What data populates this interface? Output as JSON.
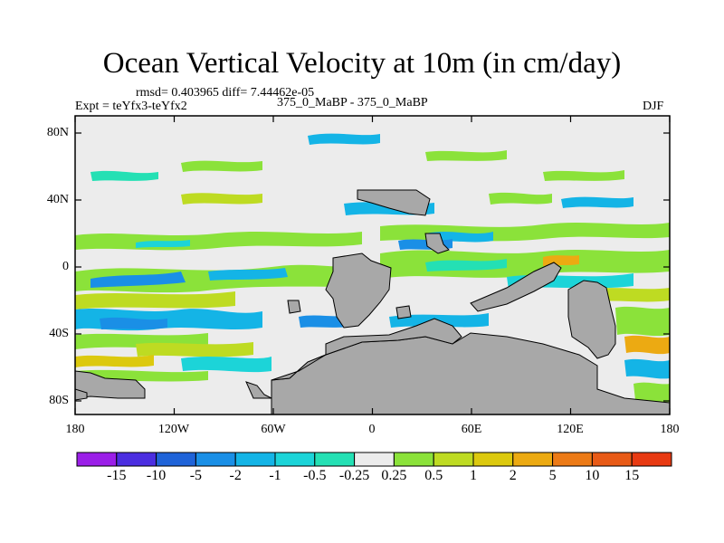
{
  "title": "Ocean Vertical Velocity at 10m (in cm/day)",
  "stats": "rmsd= 0.403965 diff= 7.44462e-05",
  "expt": "Expt = teYfx3-teYfx2",
  "comparison": "375_0_MaBP - 375_0_MaBP",
  "season": "DJF",
  "yticks": [
    "80N",
    "40N",
    "0",
    "40S",
    "80S"
  ],
  "xticks": [
    "180",
    "120W",
    "60W",
    "0",
    "60E",
    "120E",
    "180"
  ],
  "colorbar": {
    "labels": [
      "-15",
      "-10",
      "-5",
      "-2",
      "-1",
      "-0.5",
      "-0.25",
      "0.25",
      "0.5",
      "1",
      "2",
      "5",
      "10",
      "15"
    ],
    "colors": [
      "#9b1fe8",
      "#4b2ee0",
      "#1f63d8",
      "#1a8fe6",
      "#14b4e6",
      "#1cd4d8",
      "#24e0b4",
      "#ececec",
      "#8be23a",
      "#bedb22",
      "#dcc90e",
      "#ecaa12",
      "#ec7a16",
      "#e85a16",
      "#e83a12"
    ]
  },
  "map": {
    "land_color": "#a8a8a8",
    "ocean_neutral_color": "#ececec"
  }
}
